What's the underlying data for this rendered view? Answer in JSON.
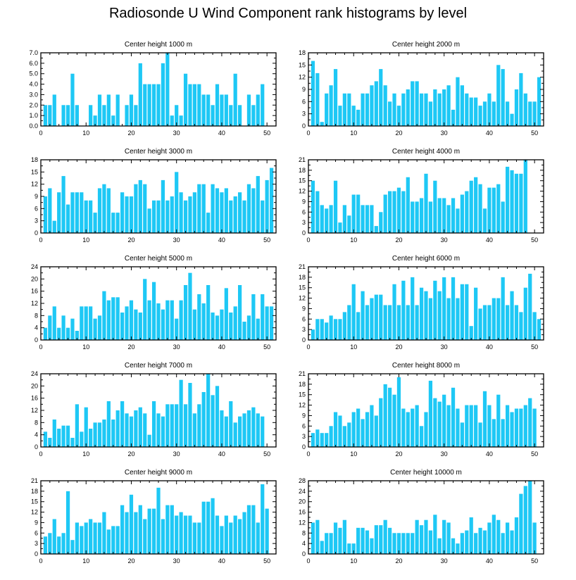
{
  "title": "Radiosonde U Wind Component rank histograms by level",
  "colors": {
    "bar": "#1ec8f5",
    "axis": "#000000",
    "background": "#ffffff"
  },
  "chart_data": [
    {
      "type": "bar",
      "title": "Center height 1000 m",
      "xlim": [
        0,
        52
      ],
      "ylim": [
        0,
        7
      ],
      "yticks": [
        0,
        1,
        2,
        3,
        4,
        5,
        6,
        7
      ],
      "ytick_labels": [
        "0.0",
        "1.0",
        "2.0",
        "3.0",
        "4.0",
        "5.0",
        "6.0",
        "7.0"
      ],
      "xticks": [
        0,
        10,
        20,
        30,
        40,
        50
      ],
      "x": [
        1,
        2,
        3,
        4,
        5,
        6,
        7,
        8,
        9,
        10,
        11,
        12,
        13,
        14,
        15,
        16,
        17,
        18,
        19,
        20,
        21,
        22,
        23,
        24,
        25,
        26,
        27,
        28,
        29,
        30,
        31,
        32,
        33,
        34,
        35,
        36,
        37,
        38,
        39,
        40,
        41,
        42,
        43,
        44,
        45,
        46,
        47,
        48,
        49,
        50,
        51
      ],
      "values": [
        2,
        2,
        3,
        0,
        2,
        2,
        5,
        2,
        0,
        0,
        2,
        1,
        3,
        2,
        3,
        1,
        3,
        0,
        2,
        3,
        2,
        6,
        4,
        4,
        4,
        4,
        6,
        7,
        1,
        2,
        1,
        5,
        4,
        4,
        4,
        3,
        3,
        2,
        4,
        3,
        3,
        2,
        5,
        2,
        0,
        3,
        2,
        3,
        4,
        0,
        0
      ]
    },
    {
      "type": "bar",
      "title": "Center height 2000 m",
      "xlim": [
        0,
        52
      ],
      "ylim": [
        0,
        18
      ],
      "yticks": [
        0,
        3,
        6,
        9,
        12,
        15,
        18
      ],
      "ytick_labels": [
        "0",
        "3",
        "6",
        "9",
        "12",
        "15",
        "18"
      ],
      "xticks": [
        0,
        10,
        20,
        30,
        40,
        50
      ],
      "x": [
        1,
        2,
        3,
        4,
        5,
        6,
        7,
        8,
        9,
        10,
        11,
        12,
        13,
        14,
        15,
        16,
        17,
        18,
        19,
        20,
        21,
        22,
        23,
        24,
        25,
        26,
        27,
        28,
        29,
        30,
        31,
        32,
        33,
        34,
        35,
        36,
        37,
        38,
        39,
        40,
        41,
        42,
        43,
        44,
        45,
        46,
        47,
        48,
        49,
        50,
        51
      ],
      "values": [
        16,
        13,
        1,
        8,
        10,
        14,
        5,
        8,
        8,
        5,
        4,
        8,
        8,
        10,
        11,
        14,
        10,
        6,
        8,
        5,
        8,
        9,
        11,
        11,
        8,
        8,
        6,
        9,
        8,
        9,
        10,
        4,
        12,
        10,
        8,
        7,
        7,
        5,
        6,
        8,
        6,
        15,
        14,
        6,
        3,
        9,
        13,
        8,
        6,
        6,
        12
      ]
    },
    {
      "type": "bar",
      "title": "Center height 3000 m",
      "xlim": [
        0,
        52
      ],
      "ylim": [
        0,
        18
      ],
      "yticks": [
        0,
        3,
        6,
        9,
        12,
        15,
        18
      ],
      "ytick_labels": [
        "0",
        "3",
        "6",
        "9",
        "12",
        "15",
        "18"
      ],
      "xticks": [
        0,
        10,
        20,
        30,
        40,
        50
      ],
      "x": [
        1,
        2,
        3,
        4,
        5,
        6,
        7,
        8,
        9,
        10,
        11,
        12,
        13,
        14,
        15,
        16,
        17,
        18,
        19,
        20,
        21,
        22,
        23,
        24,
        25,
        26,
        27,
        28,
        29,
        30,
        31,
        32,
        33,
        34,
        35,
        36,
        37,
        38,
        39,
        40,
        41,
        42,
        43,
        44,
        45,
        46,
        47,
        48,
        49,
        50,
        51
      ],
      "values": [
        9,
        11,
        3,
        10,
        14,
        7,
        10,
        10,
        10,
        8,
        8,
        5,
        11,
        12,
        11,
        5,
        5,
        10,
        9,
        9,
        12,
        13,
        12,
        6,
        8,
        8,
        13,
        8,
        9,
        15,
        10,
        8,
        9,
        10,
        12,
        12,
        5,
        12,
        11,
        10,
        11,
        8,
        9,
        10,
        8,
        12,
        11,
        14,
        8,
        13,
        16
      ]
    },
    {
      "type": "bar",
      "title": "Center height 4000 m",
      "xlim": [
        0,
        52
      ],
      "ylim": [
        0,
        21
      ],
      "yticks": [
        0,
        3,
        6,
        9,
        12,
        15,
        18,
        21
      ],
      "ytick_labels": [
        "0",
        "3",
        "6",
        "9",
        "12",
        "15",
        "18",
        "21"
      ],
      "xticks": [
        0,
        10,
        20,
        30,
        40,
        50
      ],
      "x": [
        1,
        2,
        3,
        4,
        5,
        6,
        7,
        8,
        9,
        10,
        11,
        12,
        13,
        14,
        15,
        16,
        17,
        18,
        19,
        20,
        21,
        22,
        23,
        24,
        25,
        26,
        27,
        28,
        29,
        30,
        31,
        32,
        33,
        34,
        35,
        36,
        37,
        38,
        39,
        40,
        41,
        42,
        43,
        44,
        45,
        46,
        47,
        48,
        49,
        50,
        51
      ],
      "values": [
        15,
        12,
        8,
        7,
        8,
        15,
        3,
        8,
        5,
        11,
        11,
        8,
        8,
        8,
        2,
        6,
        11,
        12,
        12,
        13,
        12,
        16,
        9,
        9,
        10,
        17,
        9,
        15,
        10,
        10,
        8,
        10,
        7,
        11,
        12,
        15,
        16,
        14,
        7,
        13,
        13,
        14,
        9,
        19,
        18,
        17,
        17,
        21,
        0,
        0,
        0
      ]
    },
    {
      "type": "bar",
      "title": "Center height 5000 m",
      "xlim": [
        0,
        52
      ],
      "ylim": [
        0,
        24
      ],
      "yticks": [
        0,
        4,
        8,
        12,
        16,
        20,
        24
      ],
      "ytick_labels": [
        "0",
        "4",
        "8",
        "12",
        "16",
        "20",
        "24"
      ],
      "xticks": [
        0,
        10,
        20,
        30,
        40,
        50
      ],
      "x": [
        1,
        2,
        3,
        4,
        5,
        6,
        7,
        8,
        9,
        10,
        11,
        12,
        13,
        14,
        15,
        16,
        17,
        18,
        19,
        20,
        21,
        22,
        23,
        24,
        25,
        26,
        27,
        28,
        29,
        30,
        31,
        32,
        33,
        34,
        35,
        36,
        37,
        38,
        39,
        40,
        41,
        42,
        43,
        44,
        45,
        46,
        47,
        48,
        49,
        50,
        51
      ],
      "values": [
        4,
        8,
        11,
        4,
        8,
        4,
        7,
        3,
        11,
        11,
        11,
        7,
        8,
        16,
        13,
        14,
        14,
        9,
        11,
        13,
        10,
        9,
        20,
        13,
        19,
        12,
        10,
        13,
        13,
        7,
        13,
        18,
        22,
        10,
        15,
        12,
        18,
        9,
        8,
        10,
        17,
        9,
        11,
        18,
        6,
        8,
        15,
        7,
        15,
        11,
        11
      ]
    },
    {
      "type": "bar",
      "title": "Center height 6000 m",
      "xlim": [
        0,
        52
      ],
      "ylim": [
        0,
        21
      ],
      "yticks": [
        0,
        3,
        6,
        9,
        12,
        15,
        18,
        21
      ],
      "ytick_labels": [
        "0",
        "3",
        "6",
        "9",
        "12",
        "15",
        "18",
        "21"
      ],
      "xticks": [
        0,
        10,
        20,
        30,
        40,
        50
      ],
      "x": [
        1,
        2,
        3,
        4,
        5,
        6,
        7,
        8,
        9,
        10,
        11,
        12,
        13,
        14,
        15,
        16,
        17,
        18,
        19,
        20,
        21,
        22,
        23,
        24,
        25,
        26,
        27,
        28,
        29,
        30,
        31,
        32,
        33,
        34,
        35,
        36,
        37,
        38,
        39,
        40,
        41,
        42,
        43,
        44,
        45,
        46,
        47,
        48,
        49,
        50,
        51
      ],
      "values": [
        3,
        6,
        6,
        5,
        7,
        6,
        6,
        8,
        10,
        16,
        8,
        14,
        10,
        12,
        13,
        13,
        10,
        10,
        16,
        10,
        17,
        10,
        18,
        10,
        15,
        14,
        12,
        17,
        14,
        18,
        12,
        18,
        12,
        16,
        16,
        4,
        15,
        9,
        10,
        10,
        12,
        12,
        18,
        10,
        14,
        10,
        8,
        15,
        19,
        8,
        6
      ]
    },
    {
      "type": "bar",
      "title": "Center height 7000 m",
      "xlim": [
        0,
        52
      ],
      "ylim": [
        0,
        24
      ],
      "yticks": [
        0,
        4,
        8,
        12,
        16,
        20,
        24
      ],
      "ytick_labels": [
        "0",
        "4",
        "8",
        "12",
        "16",
        "20",
        "24"
      ],
      "xticks": [
        0,
        10,
        20,
        30,
        40,
        50
      ],
      "x": [
        1,
        2,
        3,
        4,
        5,
        6,
        7,
        8,
        9,
        10,
        11,
        12,
        13,
        14,
        15,
        16,
        17,
        18,
        19,
        20,
        21,
        22,
        23,
        24,
        25,
        26,
        27,
        28,
        29,
        30,
        31,
        32,
        33,
        34,
        35,
        36,
        37,
        38,
        39,
        40,
        41,
        42,
        43,
        44,
        45,
        46,
        47,
        48,
        49,
        50,
        51
      ],
      "values": [
        5,
        3,
        9,
        6,
        7,
        7,
        3,
        14,
        5,
        13,
        6,
        8,
        8,
        9,
        15,
        9,
        12,
        15,
        11,
        10,
        12,
        13,
        11,
        4,
        15,
        11,
        10,
        14,
        14,
        14,
        22,
        14,
        21,
        11,
        14,
        18,
        24,
        17,
        20,
        12,
        10,
        15,
        8,
        10,
        11,
        12,
        13,
        11,
        10,
        0,
        0
      ]
    },
    {
      "type": "bar",
      "title": "Center height 8000 m",
      "xlim": [
        0,
        52
      ],
      "ylim": [
        0,
        21
      ],
      "yticks": [
        0,
        3,
        6,
        9,
        12,
        15,
        18,
        21
      ],
      "ytick_labels": [
        "0",
        "3",
        "6",
        "9",
        "12",
        "15",
        "18",
        "21"
      ],
      "xticks": [
        0,
        10,
        20,
        30,
        40,
        50
      ],
      "x": [
        1,
        2,
        3,
        4,
        5,
        6,
        7,
        8,
        9,
        10,
        11,
        12,
        13,
        14,
        15,
        16,
        17,
        18,
        19,
        20,
        21,
        22,
        23,
        24,
        25,
        26,
        27,
        28,
        29,
        30,
        31,
        32,
        33,
        34,
        35,
        36,
        37,
        38,
        39,
        40,
        41,
        42,
        43,
        44,
        45,
        46,
        47,
        48,
        49,
        50,
        51
      ],
      "values": [
        4,
        5,
        4,
        4,
        6,
        10,
        9,
        6,
        7,
        10,
        11,
        8,
        10,
        12,
        9,
        14,
        18,
        17,
        15,
        20,
        11,
        10,
        11,
        12,
        6,
        10,
        19,
        14,
        13,
        15,
        12,
        17,
        11,
        7,
        12,
        12,
        12,
        7,
        16,
        12,
        8,
        15,
        8,
        12,
        10,
        11,
        11,
        12,
        14,
        11,
        0
      ]
    },
    {
      "type": "bar",
      "title": "Center height 9000 m",
      "xlim": [
        0,
        52
      ],
      "ylim": [
        0,
        21
      ],
      "yticks": [
        0,
        3,
        6,
        9,
        12,
        15,
        18,
        21
      ],
      "ytick_labels": [
        "0",
        "3",
        "6",
        "9",
        "12",
        "15",
        "18",
        "21"
      ],
      "xticks": [
        0,
        10,
        20,
        30,
        40,
        50
      ],
      "x": [
        1,
        2,
        3,
        4,
        5,
        6,
        7,
        8,
        9,
        10,
        11,
        12,
        13,
        14,
        15,
        16,
        17,
        18,
        19,
        20,
        21,
        22,
        23,
        24,
        25,
        26,
        27,
        28,
        29,
        30,
        31,
        32,
        33,
        34,
        35,
        36,
        37,
        38,
        39,
        40,
        41,
        42,
        43,
        44,
        45,
        46,
        47,
        48,
        49,
        50,
        51
      ],
      "values": [
        5,
        6,
        10,
        5,
        6,
        18,
        4,
        9,
        8,
        9,
        10,
        9,
        9,
        12,
        7,
        8,
        8,
        14,
        12,
        17,
        12,
        14,
        10,
        13,
        13,
        19,
        10,
        14,
        14,
        11,
        12,
        11,
        11,
        9,
        9,
        15,
        15,
        16,
        11,
        8,
        11,
        9,
        11,
        10,
        12,
        14,
        14,
        9,
        20,
        13,
        0
      ]
    },
    {
      "type": "bar",
      "title": "Center height 10000 m",
      "xlim": [
        0,
        52
      ],
      "ylim": [
        0,
        28
      ],
      "yticks": [
        0,
        4,
        8,
        12,
        16,
        20,
        24,
        28
      ],
      "ytick_labels": [
        "0",
        "4",
        "8",
        "12",
        "16",
        "20",
        "24",
        "28"
      ],
      "xticks": [
        0,
        10,
        20,
        30,
        40,
        50
      ],
      "x": [
        1,
        2,
        3,
        4,
        5,
        6,
        7,
        8,
        9,
        10,
        11,
        12,
        13,
        14,
        15,
        16,
        17,
        18,
        19,
        20,
        21,
        22,
        23,
        24,
        25,
        26,
        27,
        28,
        29,
        30,
        31,
        32,
        33,
        34,
        35,
        36,
        37,
        38,
        39,
        40,
        41,
        42,
        43,
        44,
        45,
        46,
        47,
        48,
        49,
        50,
        51
      ],
      "values": [
        12,
        13,
        5,
        8,
        8,
        12,
        10,
        13,
        4,
        4,
        10,
        10,
        9,
        6,
        11,
        11,
        13,
        10,
        8,
        8,
        8,
        8,
        8,
        13,
        11,
        13,
        9,
        15,
        6,
        13,
        12,
        6,
        4,
        8,
        9,
        14,
        8,
        10,
        9,
        12,
        15,
        13,
        8,
        12,
        9,
        14,
        23,
        26,
        28,
        12,
        0
      ]
    }
  ]
}
